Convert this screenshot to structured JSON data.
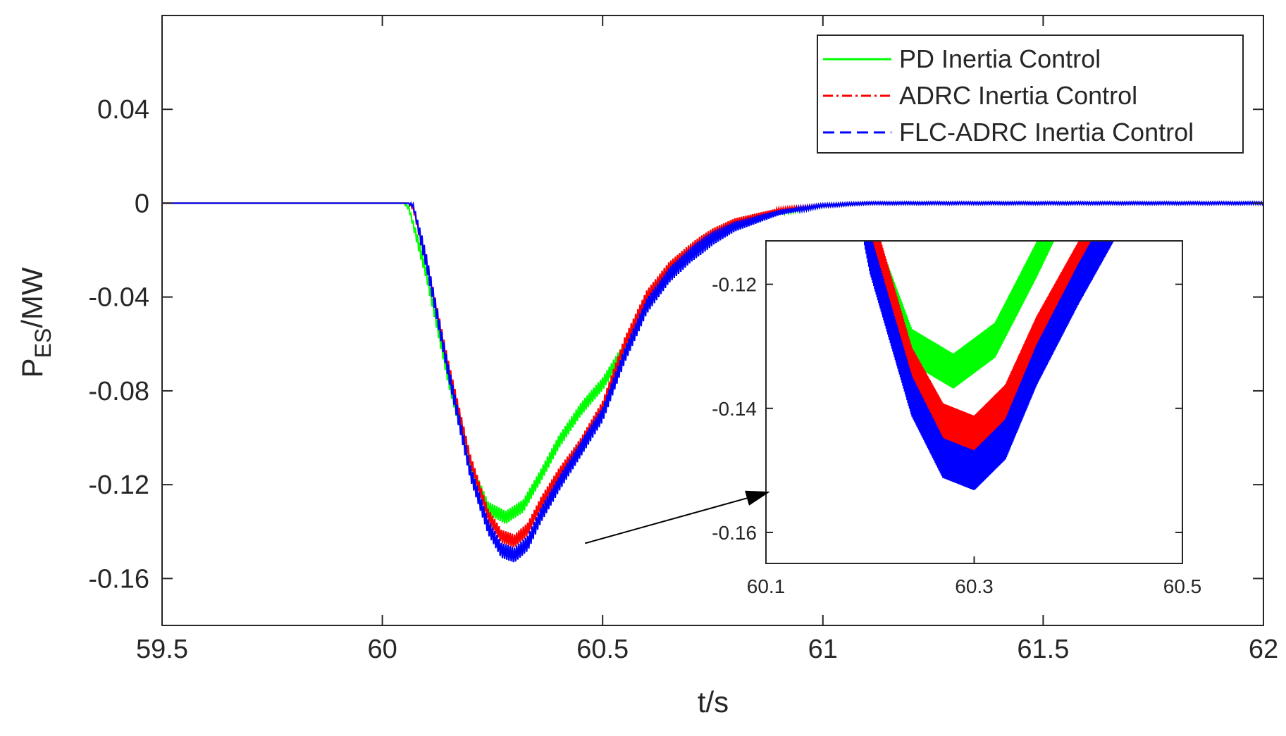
{
  "chart_data": {
    "type": "line",
    "title": "",
    "xlabel": "t/s",
    "ylabel": {
      "main": "P",
      "subscript": "ES",
      "suffix": "/MW"
    },
    "xlim": [
      59.5,
      62
    ],
    "ylim": [
      -0.18,
      0.08
    ],
    "xticks": [
      59.5,
      60,
      60.5,
      61,
      61.5,
      62
    ],
    "xtick_labels": [
      "59.5",
      "60",
      "60.5",
      "61",
      "61.5",
      "62"
    ],
    "yticks": [
      0.04,
      0,
      -0.04,
      -0.08,
      -0.12,
      -0.16
    ],
    "ytick_labels": [
      "0.04",
      "0",
      "-0.04",
      "-0.08",
      "-0.12",
      "-0.16"
    ],
    "grid": false,
    "legend_position": "top-right",
    "series": [
      {
        "name": "PD Inertia Control",
        "color": "#00ff00",
        "dash": "solid",
        "x": [
          59.5,
          60.05,
          60.06,
          60.1,
          60.15,
          60.2,
          60.24,
          60.28,
          60.32,
          60.36,
          60.4,
          60.45,
          60.5,
          60.55,
          60.6,
          60.65,
          60.7,
          60.75,
          60.8,
          60.9,
          61.0,
          61.1,
          61.2,
          61.5,
          62.0
        ],
        "y": [
          0,
          0,
          -0.002,
          -0.03,
          -0.075,
          -0.112,
          -0.13,
          -0.134,
          -0.129,
          -0.116,
          -0.102,
          -0.088,
          -0.077,
          -0.062,
          -0.042,
          -0.03,
          -0.021,
          -0.014,
          -0.009,
          -0.004,
          -0.001,
          0,
          0,
          0,
          0
        ]
      },
      {
        "name": "ADRC Inertia Control",
        "color": "#ff0000",
        "dash": "dashdot",
        "x": [
          59.5,
          60.06,
          60.07,
          60.1,
          60.15,
          60.2,
          60.24,
          60.27,
          60.3,
          60.33,
          60.36,
          60.4,
          60.45,
          60.5,
          60.55,
          60.6,
          60.65,
          60.7,
          60.75,
          60.8,
          60.9,
          61.0,
          61.1,
          61.2,
          61.5,
          62.0
        ],
        "y": [
          0,
          0,
          -0.002,
          -0.025,
          -0.07,
          -0.11,
          -0.133,
          -0.142,
          -0.144,
          -0.139,
          -0.128,
          -0.116,
          -0.103,
          -0.087,
          -0.06,
          -0.04,
          -0.028,
          -0.02,
          -0.013,
          -0.008,
          -0.003,
          -0.001,
          0,
          0,
          0,
          0
        ]
      },
      {
        "name": "FLC-ADRC Inertia Control",
        "color": "#0000ff",
        "dash": "dashed",
        "x": [
          59.5,
          60.06,
          60.07,
          60.1,
          60.15,
          60.2,
          60.24,
          60.27,
          60.3,
          60.33,
          60.36,
          60.4,
          60.45,
          60.5,
          60.55,
          60.6,
          60.65,
          60.7,
          60.75,
          60.8,
          60.9,
          61.0,
          61.1,
          61.2,
          61.5,
          62.0
        ],
        "y": [
          0,
          0,
          -0.001,
          -0.025,
          -0.072,
          -0.115,
          -0.138,
          -0.148,
          -0.15,
          -0.145,
          -0.133,
          -0.12,
          -0.105,
          -0.09,
          -0.065,
          -0.044,
          -0.031,
          -0.022,
          -0.015,
          -0.01,
          -0.004,
          -0.001,
          0,
          0,
          0,
          0
        ]
      }
    ],
    "inset": {
      "xlim": [
        60.1,
        60.5
      ],
      "ylim": [
        -0.165,
        -0.113
      ],
      "xticks": [
        60.1,
        60.3,
        60.5
      ],
      "xtick_labels": [
        "60.1",
        "60.3",
        "60.5"
      ],
      "yticks": [
        -0.12,
        -0.14,
        -0.16
      ],
      "ytick_labels": [
        "-0.12",
        "-0.14",
        "-0.16"
      ],
      "arrow_from": [
        60.46,
        -0.145
      ],
      "arrow_to": [
        60.88,
        -0.123
      ]
    }
  }
}
